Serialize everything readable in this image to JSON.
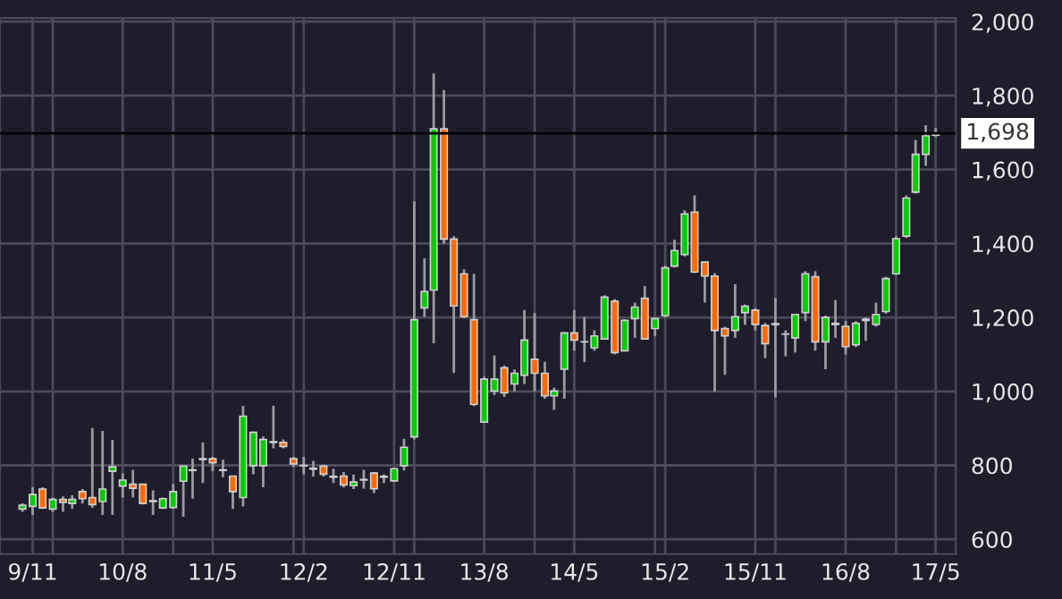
{
  "chart_data": {
    "type": "candlestick",
    "x": [
      "2009-10",
      "2009-11",
      "2009-12",
      "2010-01",
      "2010-02",
      "2010-03",
      "2010-04",
      "2010-05",
      "2010-06",
      "2010-07",
      "2010-08",
      "2010-09",
      "2010-10",
      "2010-11",
      "2010-12",
      "2011-01",
      "2011-02",
      "2011-03",
      "2011-04",
      "2011-05",
      "2011-06",
      "2011-07",
      "2011-08",
      "2011-09",
      "2011-10",
      "2011-11",
      "2011-12",
      "2012-01",
      "2012-02",
      "2012-03",
      "2012-04",
      "2012-05",
      "2012-06",
      "2012-07",
      "2012-08",
      "2012-09",
      "2012-10",
      "2012-11",
      "2012-12",
      "2013-01",
      "2013-02",
      "2013-03",
      "2013-04",
      "2013-05",
      "2013-06",
      "2013-07",
      "2013-08",
      "2013-09",
      "2013-10",
      "2013-11",
      "2013-12",
      "2014-01",
      "2014-02",
      "2014-03",
      "2014-04",
      "2014-05",
      "2014-06",
      "2014-07",
      "2014-08",
      "2014-09",
      "2014-10",
      "2014-11",
      "2014-12",
      "2015-01",
      "2015-02",
      "2015-03",
      "2015-04",
      "2015-05",
      "2015-06",
      "2015-07",
      "2015-08",
      "2015-09",
      "2015-10",
      "2015-11",
      "2015-12",
      "2016-01",
      "2016-02",
      "2016-03",
      "2016-04",
      "2016-05",
      "2016-06",
      "2016-07",
      "2016-08",
      "2016-09",
      "2016-10",
      "2016-11",
      "2016-12",
      "2017-01",
      "2017-02",
      "2017-03",
      "2017-04",
      "2017-05"
    ],
    "ohlc": [
      [
        682,
        697,
        674,
        692
      ],
      [
        689,
        741,
        666,
        721
      ],
      [
        736,
        741,
        682,
        685
      ],
      [
        682,
        713,
        674,
        708
      ],
      [
        708,
        716,
        674,
        700
      ],
      [
        697,
        719,
        682,
        708
      ],
      [
        729,
        736,
        697,
        710
      ],
      [
        713,
        901,
        685,
        694
      ],
      [
        702,
        893,
        666,
        736
      ],
      [
        784,
        869,
        666,
        796
      ],
      [
        744,
        778,
        713,
        760
      ],
      [
        749,
        788,
        713,
        738
      ],
      [
        749,
        749,
        694,
        697
      ],
      [
        702,
        732,
        666,
        704
      ],
      [
        685,
        713,
        682,
        710
      ],
      [
        686,
        749,
        682,
        729
      ],
      [
        757,
        798,
        661,
        798
      ],
      [
        786,
        818,
        710,
        788
      ],
      [
        816,
        862,
        752,
        818
      ],
      [
        818,
        823,
        784,
        807
      ],
      [
        788,
        815,
        768,
        786
      ],
      [
        771,
        771,
        682,
        729
      ],
      [
        713,
        961,
        689,
        933
      ],
      [
        799,
        892,
        776,
        889
      ],
      [
        799,
        878,
        741,
        870
      ],
      [
        862,
        961,
        846,
        864
      ],
      [
        862,
        870,
        846,
        851
      ],
      [
        818,
        823,
        796,
        804
      ],
      [
        800,
        823,
        776,
        799
      ],
      [
        792,
        812,
        770,
        790
      ],
      [
        798,
        802,
        770,
        776
      ],
      [
        768,
        791,
        752,
        770
      ],
      [
        771,
        782,
        740,
        747
      ],
      [
        745,
        775,
        736,
        755
      ],
      [
        760,
        788,
        737,
        762
      ],
      [
        779,
        782,
        725,
        737
      ],
      [
        768,
        776,
        752,
        770
      ],
      [
        758,
        794,
        755,
        791
      ],
      [
        799,
        872,
        786,
        849
      ],
      [
        877,
        1514,
        870,
        1194
      ],
      [
        1226,
        1360,
        1202,
        1270
      ],
      [
        1274,
        1860,
        1130,
        1710
      ],
      [
        1710,
        1815,
        1400,
        1412
      ],
      [
        1412,
        1420,
        1050,
        1231
      ],
      [
        1318,
        1330,
        1198,
        1202
      ],
      [
        1194,
        1318,
        960,
        965
      ],
      [
        917,
        1040,
        917,
        1033
      ],
      [
        1001,
        1097,
        990,
        1033
      ],
      [
        1064,
        1070,
        985,
        996
      ],
      [
        1020,
        1060,
        1000,
        1049
      ],
      [
        1044,
        1220,
        1020,
        1139
      ],
      [
        1087,
        1212,
        1000,
        1049
      ],
      [
        1049,
        1080,
        980,
        988
      ],
      [
        988,
        1010,
        950,
        1001
      ],
      [
        1060,
        1160,
        980,
        1158
      ],
      [
        1158,
        1220,
        1110,
        1139
      ],
      [
        1134,
        1202,
        1079,
        1134
      ],
      [
        1118,
        1165,
        1110,
        1150
      ],
      [
        1142,
        1260,
        1140,
        1255
      ],
      [
        1244,
        1250,
        1100,
        1105
      ],
      [
        1110,
        1195,
        1108,
        1192
      ],
      [
        1197,
        1240,
        1145,
        1228
      ],
      [
        1252,
        1285,
        1140,
        1142
      ],
      [
        1170,
        1200,
        1150,
        1197
      ],
      [
        1205,
        1340,
        1200,
        1334
      ],
      [
        1339,
        1410,
        1335,
        1381
      ],
      [
        1370,
        1490,
        1365,
        1480
      ],
      [
        1485,
        1530,
        1320,
        1323
      ],
      [
        1350,
        1350,
        1240,
        1312
      ],
      [
        1312,
        1320,
        1000,
        1165
      ],
      [
        1170,
        1175,
        1045,
        1150
      ],
      [
        1165,
        1290,
        1145,
        1202
      ],
      [
        1213,
        1235,
        1180,
        1230
      ],
      [
        1220,
        1225,
        1165,
        1181
      ],
      [
        1178,
        1185,
        1090,
        1129
      ],
      [
        1181,
        1252,
        984,
        1183
      ],
      [
        1155,
        1165,
        1095,
        1155
      ],
      [
        1145,
        1210,
        1105,
        1208
      ],
      [
        1213,
        1325,
        1190,
        1318
      ],
      [
        1310,
        1325,
        1110,
        1134
      ],
      [
        1134,
        1205,
        1060,
        1200
      ],
      [
        1181,
        1247,
        1145,
        1184
      ],
      [
        1176,
        1190,
        1100,
        1121
      ],
      [
        1126,
        1190,
        1120,
        1184
      ],
      [
        1192,
        1200,
        1137,
        1195
      ],
      [
        1181,
        1240,
        1175,
        1208
      ],
      [
        1216,
        1310,
        1210,
        1305
      ],
      [
        1318,
        1420,
        1315,
        1413
      ],
      [
        1420,
        1530,
        1415,
        1523
      ],
      [
        1539,
        1680,
        1535,
        1641
      ],
      [
        1641,
        1720,
        1610,
        1691
      ],
      [
        1693,
        1712,
        1688,
        1698
      ]
    ],
    "colors": [
      "#00cc00",
      "#00cc00",
      "#ff6a00",
      "#00cc00",
      "#ff6a00",
      "#00cc00",
      "#ff6a00",
      "#ff6a00",
      "#00cc00",
      "#00cc00",
      "#00cc00",
      "#ff6a00",
      "#ff6a00",
      "#00cc00",
      "#00cc00",
      "#00cc00",
      "#00cc00",
      "#00cc00",
      "#00cc00",
      "#ff6a00",
      "#ff6a00",
      "#ff6a00",
      "#00cc00",
      "#00cc00",
      "#00cc00",
      "#00cc00",
      "#ff6a00",
      "#ff6a00",
      "#ff6a00",
      "#ff6a00",
      "#ff6a00",
      "#00cc00",
      "#ff6a00",
      "#00cc00",
      "#00cc00",
      "#ff6a00",
      "#00cc00",
      "#00cc00",
      "#00cc00",
      "#00cc00",
      "#00cc00",
      "#00cc00",
      "#ff6a00",
      "#ff6a00",
      "#ff6a00",
      "#ff6a00",
      "#00cc00",
      "#00cc00",
      "#ff6a00",
      "#00cc00",
      "#00cc00",
      "#ff6a00",
      "#ff6a00",
      "#00cc00",
      "#00cc00",
      "#ff6a00",
      "#ff6a00",
      "#00cc00",
      "#00cc00",
      "#ff6a00",
      "#00cc00",
      "#00cc00",
      "#ff6a00",
      "#00cc00",
      "#00cc00",
      "#00cc00",
      "#00cc00",
      "#ff6a00",
      "#ff6a00",
      "#ff6a00",
      "#ff6a00",
      "#00cc00",
      "#00cc00",
      "#ff6a00",
      "#ff6a00",
      "#00cc00",
      "#ff6a00",
      "#00cc00",
      "#00cc00",
      "#ff6a00",
      "#00cc00",
      "#00cc00",
      "#ff6a00",
      "#00cc00",
      "#00cc00",
      "#00cc00",
      "#00cc00",
      "#00cc00",
      "#00cc00",
      "#00cc00",
      "#00cc00",
      "#00cc00"
    ],
    "xlim": [
      "2009-07-25",
      "2017-07-01"
    ],
    "xticks": [
      {
        "value": "2009-11",
        "label": "9/11"
      },
      {
        "value": "2010-01",
        "label": null
      },
      {
        "value": "2010-08",
        "label": "10/8"
      },
      {
        "value": "2011-01",
        "label": null
      },
      {
        "value": "2011-05",
        "label": "11/5"
      },
      {
        "value": "2012-01",
        "label": null
      },
      {
        "value": "2012-02",
        "label": "12/2"
      },
      {
        "value": "2012-11",
        "label": "12/11"
      },
      {
        "value": "2013-01",
        "label": null
      },
      {
        "value": "2013-08",
        "label": "13/8"
      },
      {
        "value": "2014-01",
        "label": null
      },
      {
        "value": "2014-05",
        "label": "14/5"
      },
      {
        "value": "2015-01",
        "label": null
      },
      {
        "value": "2015-02",
        "label": "15/2"
      },
      {
        "value": "2015-11",
        "label": "15/11"
      },
      {
        "value": "2016-01",
        "label": null
      },
      {
        "value": "2016-08",
        "label": "16/8"
      },
      {
        "value": "2017-01",
        "label": null
      },
      {
        "value": "2017-05",
        "label": "17/5"
      }
    ],
    "ylim": [
      560,
      2010
    ],
    "yticks": [
      {
        "value": 600,
        "label": "600"
      },
      {
        "value": 800,
        "label": "800"
      },
      {
        "value": 1000,
        "label": "1,000"
      },
      {
        "value": 1200,
        "label": "1,200"
      },
      {
        "value": 1400,
        "label": "1,400"
      },
      {
        "value": 1600,
        "label": "1,600"
      },
      {
        "value": 1800,
        "label": "1,800"
      },
      {
        "value": 2000,
        "label": "2,000"
      }
    ],
    "ref_lines": [
      {
        "axis": "y",
        "value": 1698,
        "label": "1,698",
        "color": "#000000"
      }
    ],
    "grid": true
  }
}
